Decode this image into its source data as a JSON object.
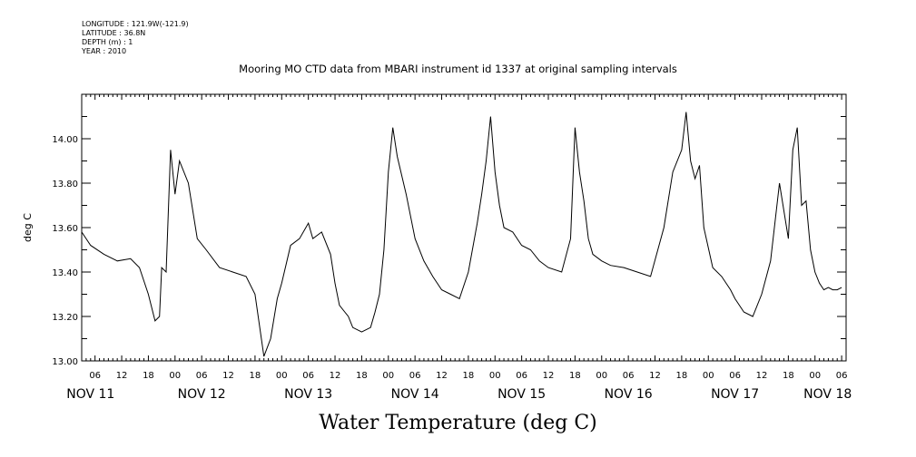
{
  "header": {
    "longitude": "LONGITUDE : 121.9W(-121.9)",
    "latitude": "LATITUDE : 36.8N",
    "depth": "DEPTH (m) : 1",
    "year": "YEAR : 2010"
  },
  "chart_data": {
    "type": "line",
    "title": "Mooring MO CTD data from MBARI instrument id 1337 at original sampling intervals",
    "xlabel": "Water Temperature (deg C)",
    "ylabel": "deg C",
    "ylim": [
      13.0,
      14.2
    ],
    "yticks": [
      "13.00",
      "13.20",
      "13.40",
      "13.60",
      "13.80",
      "14.00"
    ],
    "x_hour_ticks": [
      "06",
      "12",
      "18",
      "00",
      "06",
      "12",
      "18",
      "00",
      "06",
      "12",
      "18",
      "00",
      "06",
      "12",
      "18",
      "00",
      "06",
      "12",
      "18",
      "00",
      "06",
      "12",
      "18",
      "00",
      "06",
      "12",
      "18",
      "00",
      "06"
    ],
    "day_labels": [
      "NOV 11",
      "NOV 12",
      "NOV 13",
      "NOV 14",
      "NOV 15",
      "NOV 16",
      "NOV 17",
      "NOV 18"
    ],
    "grid": false,
    "series": [
      {
        "x": [
          "2010-11-11 03:00",
          "2010-11-11 05:00",
          "2010-11-11 08:00",
          "2010-11-11 11:00",
          "2010-11-11 14:00",
          "2010-11-11 16:00",
          "2010-11-11 18:00",
          "2010-11-11 19:30",
          "2010-11-11 20:30",
          "2010-11-11 21:00",
          "2010-11-11 22:00",
          "2010-11-11 23:00",
          "2010-11-12 00:00",
          "2010-11-12 01:00",
          "2010-11-12 03:00",
          "2010-11-12 05:00",
          "2010-11-12 07:00",
          "2010-11-12 10:00",
          "2010-11-12 13:00",
          "2010-11-12 16:00",
          "2010-11-12 18:00",
          "2010-11-12 20:00",
          "2010-11-12 21:30",
          "2010-11-12 23:00",
          "2010-11-13 00:00",
          "2010-11-13 02:00",
          "2010-11-13 04:00",
          "2010-11-13 06:00",
          "2010-11-13 07:00",
          "2010-11-13 09:00",
          "2010-11-13 11:00",
          "2010-11-13 12:00",
          "2010-11-13 13:00",
          "2010-11-13 15:00",
          "2010-11-13 16:00",
          "2010-11-13 18:00",
          "2010-11-13 20:00",
          "2010-11-13 21:00",
          "2010-11-13 22:00",
          "2010-11-13 23:00",
          "2010-11-14 00:00",
          "2010-11-14 01:00",
          "2010-11-14 02:00",
          "2010-11-14 04:00",
          "2010-11-14 06:00",
          "2010-11-14 08:00",
          "2010-11-14 10:00",
          "2010-11-14 12:00",
          "2010-11-14 14:00",
          "2010-11-14 16:00",
          "2010-11-14 18:00",
          "2010-11-14 20:00",
          "2010-11-14 21:00",
          "2010-11-14 22:00",
          "2010-11-14 23:00",
          "2010-11-15 00:00",
          "2010-11-15 01:00",
          "2010-11-15 02:00",
          "2010-11-15 04:00",
          "2010-11-15 06:00",
          "2010-11-15 08:00",
          "2010-11-15 10:00",
          "2010-11-15 12:00",
          "2010-11-15 15:00",
          "2010-11-15 17:00",
          "2010-11-15 18:00",
          "2010-11-15 19:00",
          "2010-11-15 20:00",
          "2010-11-15 21:00",
          "2010-11-15 22:00",
          "2010-11-16 00:00",
          "2010-11-16 02:00",
          "2010-11-16 05:00",
          "2010-11-16 08:00",
          "2010-11-16 11:00",
          "2010-11-16 14:00",
          "2010-11-16 16:00",
          "2010-11-16 18:00",
          "2010-11-16 19:00",
          "2010-11-16 20:00",
          "2010-11-16 21:00",
          "2010-11-16 22:00",
          "2010-11-16 23:00",
          "2010-11-17 01:00",
          "2010-11-17 03:00",
          "2010-11-17 05:00",
          "2010-11-17 06:00",
          "2010-11-17 08:00",
          "2010-11-17 10:00",
          "2010-11-17 12:00",
          "2010-11-17 14:00",
          "2010-11-17 16:00",
          "2010-11-17 18:00",
          "2010-11-17 19:00",
          "2010-11-17 20:00",
          "2010-11-17 21:00",
          "2010-11-17 22:00",
          "2010-11-17 23:00",
          "2010-11-18 00:00",
          "2010-11-18 01:00",
          "2010-11-18 02:00",
          "2010-11-18 03:00",
          "2010-11-18 04:00",
          "2010-11-18 05:00",
          "2010-11-18 06:00"
        ],
        "values": [
          13.58,
          13.52,
          13.48,
          13.45,
          13.46,
          13.42,
          13.3,
          13.18,
          13.2,
          13.42,
          13.4,
          13.95,
          13.75,
          13.9,
          13.8,
          13.55,
          13.5,
          13.42,
          13.4,
          13.38,
          13.3,
          13.02,
          13.1,
          13.28,
          13.35,
          13.52,
          13.55,
          13.62,
          13.55,
          13.58,
          13.48,
          13.35,
          13.25,
          13.2,
          13.15,
          13.13,
          13.15,
          13.22,
          13.3,
          13.5,
          13.85,
          14.05,
          13.92,
          13.75,
          13.55,
          13.45,
          13.38,
          13.32,
          13.3,
          13.28,
          13.4,
          13.62,
          13.75,
          13.9,
          14.1,
          13.85,
          13.7,
          13.6,
          13.58,
          13.52,
          13.5,
          13.45,
          13.42,
          13.4,
          13.55,
          14.05,
          13.85,
          13.72,
          13.55,
          13.48,
          13.45,
          13.43,
          13.42,
          13.4,
          13.38,
          13.6,
          13.85,
          13.95,
          14.12,
          13.9,
          13.82,
          13.88,
          13.6,
          13.42,
          13.38,
          13.32,
          13.28,
          13.22,
          13.2,
          13.3,
          13.45,
          13.8,
          13.55,
          13.95,
          14.05,
          13.7,
          13.72,
          13.5,
          13.4,
          13.35,
          13.32,
          13.33,
          13.32,
          13.32,
          13.33
        ]
      }
    ]
  }
}
